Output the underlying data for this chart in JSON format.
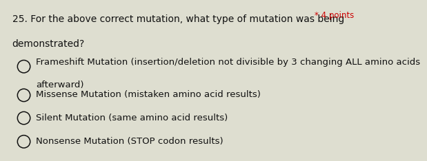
{
  "background_color": "#deded0",
  "question_number": "25.",
  "question_text_line1": "For the above correct mutation, what type of mutation was being",
  "question_text_line2": "demonstrated?",
  "points_text": "* 4 points",
  "options": [
    [
      "Frameshift Mutation (insertion/deletion not divisible by 3 changing ALL amino acids",
      "afterward)"
    ],
    [
      "Missense Mutation (mistaken amino acid results)"
    ],
    [
      "Silent Mutation (same amino acid results)"
    ],
    [
      "Nonsense Mutation (STOP codon results)"
    ]
  ],
  "question_fontsize": 10,
  "option_fontsize": 9.5,
  "points_fontsize": 8.5,
  "text_color": "#111111",
  "points_color": "#cc0000"
}
